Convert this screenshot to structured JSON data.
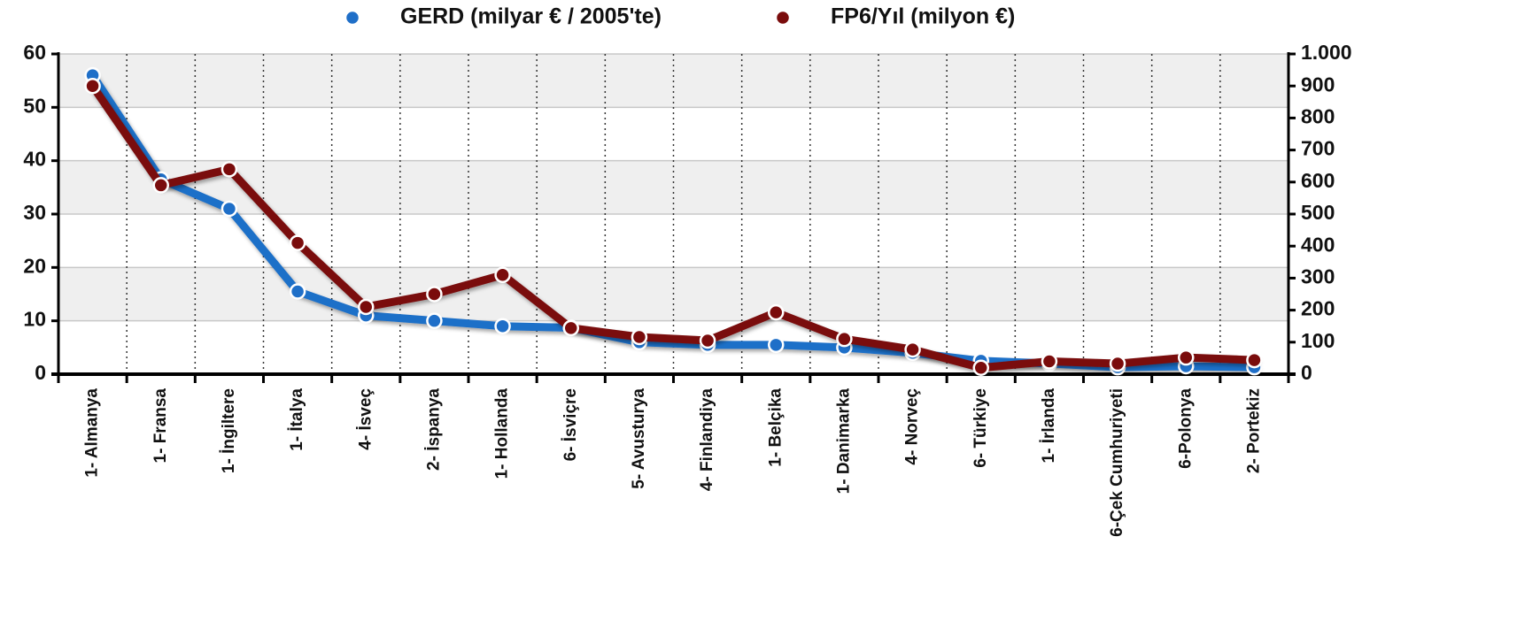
{
  "chart_data": {
    "type": "line",
    "categories": [
      "1- Almanya",
      "1- Fransa",
      "1- İngiltere",
      "1- İtalya",
      "4- İsveç",
      "2- İspanya",
      "1- Hollanda",
      "6- İsviçre",
      "5- Avusturya",
      "4- Finlandiya",
      "1- Belçika",
      "1- Danimarka",
      "4- Norveç",
      "6- Türkiye",
      "1- İrlanda",
      "6-Çek Cumhuriyeti",
      "6-Polonya",
      "2- Portekiz"
    ],
    "series": [
      {
        "name": "GERD (milyar € / 2005'te)",
        "color": "#1f6fc8",
        "values": [
          56,
          36.5,
          31,
          15.5,
          11,
          10,
          9,
          8.7,
          6,
          5.5,
          5.5,
          5,
          4,
          2.5,
          2,
          1.3,
          1.5,
          1.3
        ]
      },
      {
        "name": "FP6/Yıl (milyon €)",
        "color": "#7a0c0c",
        "axis": "y2",
        "values": [
          900,
          590,
          640,
          410,
          210,
          250,
          310,
          144,
          116,
          105,
          193,
          110,
          77,
          20,
          40,
          33,
          52,
          44
        ]
      }
    ],
    "ylim": [
      0,
      60
    ],
    "yticks": [
      0,
      10,
      20,
      30,
      40,
      50,
      60
    ],
    "y2lim": [
      0,
      1000
    ],
    "y2ticks": [
      0,
      100,
      200,
      300,
      400,
      500,
      600,
      700,
      800,
      900,
      {
        "value": 1000,
        "label": "1.000"
      }
    ],
    "grid": true,
    "legend": "top"
  }
}
